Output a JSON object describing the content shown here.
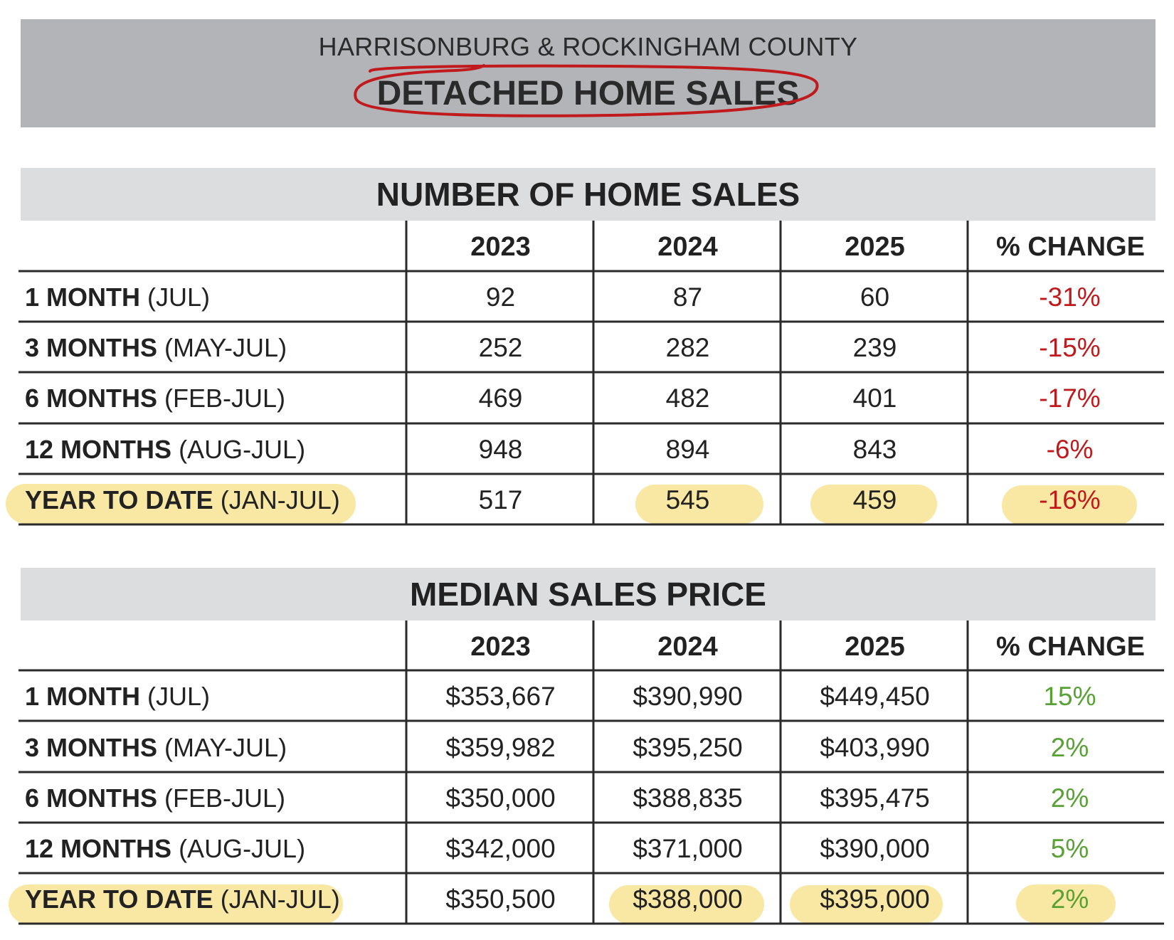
{
  "header": {
    "subtitle": "HARRISONBURG & ROCKINGHAM COUNTY",
    "title": "DETACHED HOME SALES"
  },
  "colors": {
    "negative_change": "#c0191b",
    "positive_change": "#58a135",
    "highlight": "#f8e49a",
    "annotation_circle": "#c01a1d"
  },
  "sales_table": {
    "title": "NUMBER OF HOME SALES",
    "columns": [
      "2023",
      "2024",
      "2025",
      "% CHANGE"
    ],
    "rows": [
      {
        "label": "1 MONTH",
        "period": "(JUL)",
        "v2023": "92",
        "v2024": "87",
        "v2025": "60",
        "change": "-31%"
      },
      {
        "label": "3 MONTHS",
        "period": "(MAY-JUL)",
        "v2023": "252",
        "v2024": "282",
        "v2025": "239",
        "change": "-15%"
      },
      {
        "label": "6 MONTHS",
        "period": "(FEB-JUL)",
        "v2023": "469",
        "v2024": "482",
        "v2025": "401",
        "change": "-17%"
      },
      {
        "label": "12 MONTHS",
        "period": "(AUG-JUL)",
        "v2023": "948",
        "v2024": "894",
        "v2025": "843",
        "change": "-6%"
      },
      {
        "label": "YEAR TO DATE",
        "period": "(JAN-JUL)",
        "v2023": "517",
        "v2024": "545",
        "v2025": "459",
        "change": "-16%"
      }
    ]
  },
  "price_table": {
    "title": "MEDIAN SALES PRICE",
    "columns": [
      "2023",
      "2024",
      "2025",
      "% CHANGE"
    ],
    "rows": [
      {
        "label": "1 MONTH",
        "period": "(JUL)",
        "v2023": "$353,667",
        "v2024": "$390,990",
        "v2025": "$449,450",
        "change": "15%"
      },
      {
        "label": "3 MONTHS",
        "period": "(MAY-JUL)",
        "v2023": "$359,982",
        "v2024": "$395,250",
        "v2025": "$403,990",
        "change": "2%"
      },
      {
        "label": "6 MONTHS",
        "period": "(FEB-JUL)",
        "v2023": "$350,000",
        "v2024": "$388,835",
        "v2025": "$395,475",
        "change": "2%"
      },
      {
        "label": "12 MONTHS",
        "period": "(AUG-JUL)",
        "v2023": "$342,000",
        "v2024": "$371,000",
        "v2025": "$390,000",
        "change": "5%"
      },
      {
        "label": "YEAR TO DATE",
        "period": "(JAN-JUL)",
        "v2023": "$350,500",
        "v2024": "$388,000",
        "v2025": "$395,000",
        "change": "2%"
      }
    ]
  }
}
